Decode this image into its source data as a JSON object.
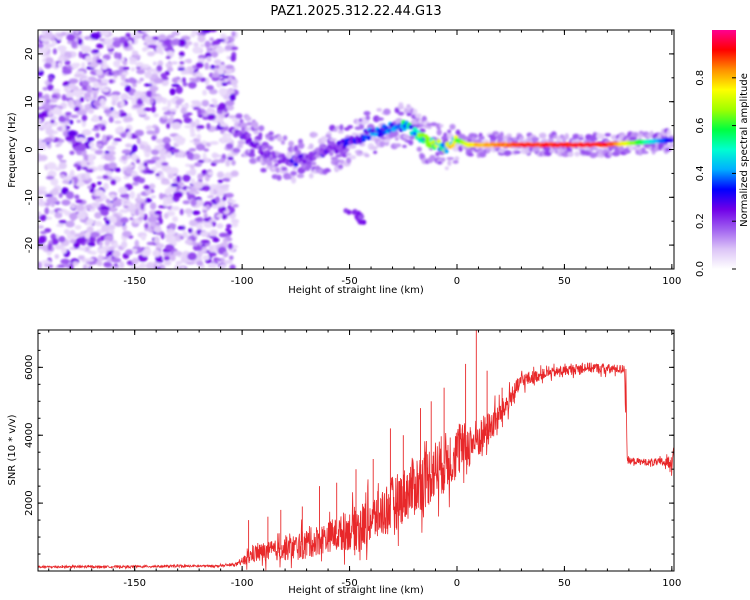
{
  "title": "PAZ1.2025.312.22.44.G13",
  "chart_data": [
    {
      "type": "heatmap",
      "name": "spectrogram",
      "xlabel": "Height of straight line (km)",
      "ylabel": "Frequency (Hz)",
      "xlim": [
        -195,
        101
      ],
      "ylim": [
        -25,
        25
      ],
      "xticks": [
        -150,
        -100,
        -50,
        0,
        50,
        100
      ],
      "yticks": [
        -20,
        -10,
        0,
        10,
        20
      ],
      "colorbar": {
        "label": "Normalized spectral amplitude",
        "range": [
          0,
          1
        ],
        "ticks": [
          0.0,
          0.2,
          0.4,
          0.6,
          0.8
        ],
        "colors": [
          "#ffffff",
          "#dcc4f7",
          "#a060f0",
          "#7000e8",
          "#0000ff",
          "#00b0ff",
          "#00ffd0",
          "#00ff40",
          "#a0ff00",
          "#ffff00",
          "#ff9000",
          "#ff0000",
          "#ff0090"
        ]
      },
      "ridge": {
        "x": [
          -100,
          -95,
          -90,
          -85,
          -80,
          -75,
          -70,
          -65,
          -60,
          -55,
          -50,
          -45,
          -40,
          -35,
          -30,
          -25,
          -20,
          -15,
          -10,
          -5,
          0,
          5,
          10,
          20,
          30,
          50,
          70,
          85,
          100
        ],
        "freq": [
          3,
          1.5,
          -0.5,
          -1.5,
          -2,
          -2.5,
          -2,
          -1,
          0,
          0.5,
          1.5,
          2.5,
          3.5,
          4,
          5,
          5,
          4,
          2,
          1,
          0.5,
          2,
          1,
          1,
          1,
          1,
          1,
          1,
          1.5,
          2
        ],
        "amplitude": [
          0.25,
          0.2,
          0.2,
          0.2,
          0.2,
          0.25,
          0.2,
          0.2,
          0.25,
          0.25,
          0.3,
          0.3,
          0.35,
          0.35,
          0.4,
          0.45,
          0.5,
          0.55,
          0.6,
          0.65,
          0.6,
          0.75,
          0.8,
          0.85,
          0.9,
          0.92,
          0.92,
          0.6,
          0.3
        ]
      },
      "noise_region_x": [
        -195,
        -103
      ],
      "secondary_feature": {
        "x": [
          -52,
          -43
        ],
        "freq": [
          -12,
          -15
        ]
      }
    },
    {
      "type": "line",
      "name": "snr",
      "xlabel": "Height of straight line (km)",
      "ylabel": "SNR (10 * v/v)",
      "xlim": [
        -195,
        101
      ],
      "ylim": [
        0,
        7100
      ],
      "xticks": [
        -150,
        -100,
        -50,
        0,
        50,
        100
      ],
      "yticks": [
        2000,
        4000,
        6000
      ],
      "color": "#e8282a",
      "x": [
        -195,
        -150,
        -110,
        -102,
        -98,
        -95,
        -90,
        -85,
        -80,
        -75,
        -70,
        -65,
        -60,
        -55,
        -50,
        -45,
        -40,
        -35,
        -30,
        -25,
        -20,
        -15,
        -10,
        -5,
        0,
        5,
        10,
        15,
        20,
        25,
        30,
        40,
        50,
        60,
        70,
        78,
        79,
        90,
        98,
        100,
        101
      ],
      "y": [
        120,
        130,
        150,
        200,
        350,
        500,
        550,
        600,
        650,
        700,
        800,
        900,
        1000,
        1100,
        1200,
        1300,
        1500,
        1700,
        2000,
        2200,
        2500,
        2700,
        3000,
        3200,
        3500,
        3700,
        3900,
        4200,
        4600,
        5100,
        5600,
        5800,
        5900,
        6000,
        5950,
        5950,
        3250,
        3200,
        3200,
        3300,
        3350
      ],
      "noise": [
        30,
        30,
        30,
        40,
        200,
        250,
        300,
        300,
        350,
        400,
        450,
        450,
        450,
        500,
        600,
        700,
        700,
        750,
        800,
        800,
        900,
        900,
        900,
        900,
        800,
        700,
        600,
        500,
        400,
        300,
        250,
        150,
        150,
        150,
        150,
        120,
        100,
        100,
        150,
        300,
        300
      ],
      "spikes": [
        {
          "x": -97,
          "y": 1500
        },
        {
          "x": -88,
          "y": 1600
        },
        {
          "x": -82,
          "y": 1800
        },
        {
          "x": -72,
          "y": 1900
        },
        {
          "x": -64,
          "y": 2500
        },
        {
          "x": -56,
          "y": 2600
        },
        {
          "x": -47,
          "y": 3000
        },
        {
          "x": -39,
          "y": 3300
        },
        {
          "x": -31,
          "y": 4200
        },
        {
          "x": -25,
          "y": 4000
        },
        {
          "x": -17,
          "y": 4800
        },
        {
          "x": -12,
          "y": 5000
        },
        {
          "x": -6,
          "y": 5400
        },
        {
          "x": 4,
          "y": 6100
        },
        {
          "x": 9,
          "y": 7100
        },
        {
          "x": 14,
          "y": 5900
        },
        {
          "x": 21,
          "y": 5400
        }
      ]
    }
  ]
}
